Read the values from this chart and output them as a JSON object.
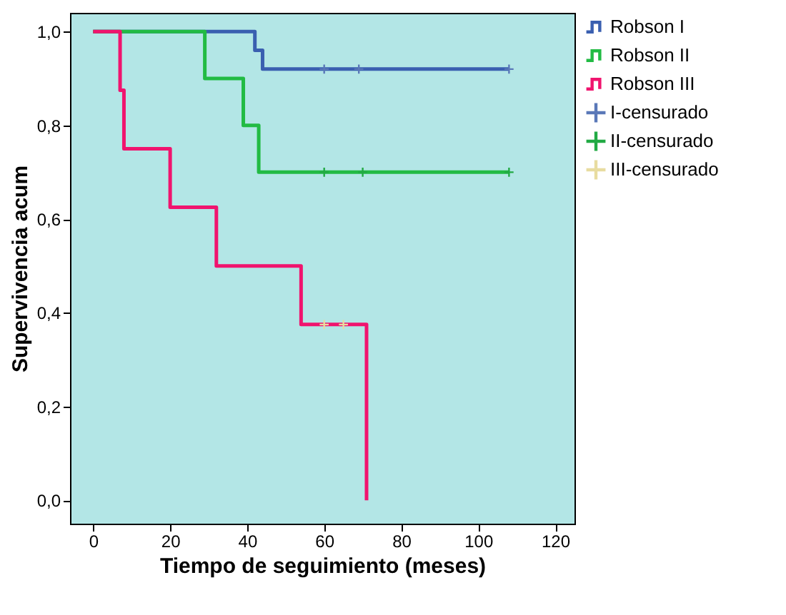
{
  "chart_data": {
    "type": "step",
    "xlabel": "Tiempo de seguimiento (meses)",
    "ylabel": "Supervivencia acum",
    "xlim": [
      -6,
      125
    ],
    "ylim": [
      -0.05,
      1.04
    ],
    "xticks": [
      0,
      20,
      40,
      60,
      80,
      100,
      120
    ],
    "yticks": [
      {
        "value": 0,
        "label": "0,0"
      },
      {
        "value": 0.2,
        "label": "0,2"
      },
      {
        "value": 0.4,
        "label": "0,4"
      },
      {
        "value": 0.6,
        "label": "0,6"
      },
      {
        "value": 0.8,
        "label": "0,8"
      },
      {
        "value": 1,
        "label": "1,0"
      }
    ],
    "grid": false,
    "legend": "right",
    "series": [
      {
        "name": "Robson I",
        "color": "#3a5fb0",
        "x": [
          0,
          42,
          44,
          108
        ],
        "values": [
          1,
          0.96,
          0.92,
          0.92
        ]
      },
      {
        "name": "Robson II",
        "color": "#22bb44",
        "x": [
          0,
          29,
          39,
          43,
          108
        ],
        "values": [
          1,
          0.9,
          0.8,
          0.7,
          0.7
        ]
      },
      {
        "name": "Robson III",
        "color": "#f0146e",
        "x": [
          0,
          7,
          8,
          20,
          32,
          54,
          71
        ],
        "values": [
          1,
          0.875,
          0.75,
          0.625,
          0.5,
          0.375,
          0
        ]
      },
      {
        "name": "I-censurado",
        "type": "scatter",
        "marker": "cross",
        "color": "#5a78b8",
        "x": [
          60,
          69,
          108
        ],
        "values": [
          0.92,
          0.92,
          0.92
        ]
      },
      {
        "name": "II-censurado",
        "type": "scatter",
        "marker": "cross",
        "color": "#22aa44",
        "x": [
          60,
          70,
          108
        ],
        "values": [
          0.7,
          0.7,
          0.7
        ]
      },
      {
        "name": "III-censurado",
        "type": "scatter",
        "marker": "cross",
        "color": "#e8dca0",
        "x": [
          60,
          65
        ],
        "values": [
          0.375,
          0.375
        ]
      }
    ]
  }
}
